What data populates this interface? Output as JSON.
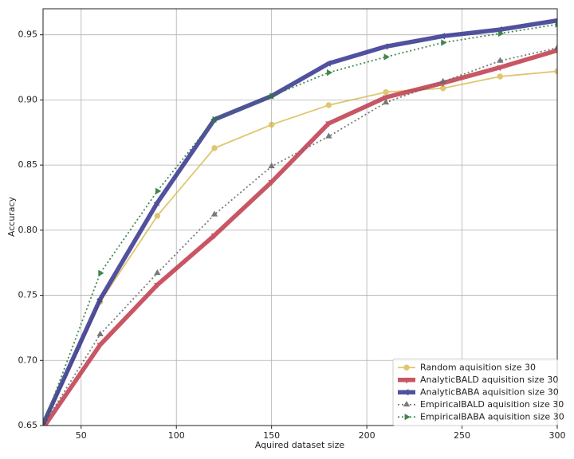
{
  "chart_data": {
    "type": "line",
    "xlabel": "Aquired dataset size",
    "ylabel": "Accuracy",
    "x": [
      30,
      60,
      90,
      120,
      150,
      180,
      210,
      240,
      270,
      300
    ],
    "xlim": [
      30,
      300
    ],
    "ylim": [
      0.65,
      0.97
    ],
    "xticks": [
      50,
      100,
      150,
      200,
      250,
      300
    ],
    "yticks": [
      0.65,
      {
        "value": 0.7,
        "label": "0.70"
      },
      0.75,
      {
        "value": 0.8,
        "label": "0.80"
      },
      0.85,
      {
        "value": 0.9,
        "label": "0.90"
      },
      0.95
    ],
    "grid": true,
    "legend": "lower right",
    "series": [
      {
        "name": "Random aquisition size 30",
        "color": "#d4b540",
        "marker": "o",
        "line_style": "solid",
        "values": [
          0.65,
          0.745,
          0.811,
          0.863,
          0.881,
          0.896,
          0.906,
          0.909,
          0.918,
          0.922
        ]
      },
      {
        "name": "AnalyticBALD aquisition size 30",
        "color": "#c0394a",
        "marker": "v",
        "line_style": "thick",
        "values": [
          0.648,
          0.712,
          0.758,
          0.796,
          0.837,
          0.882,
          0.902,
          0.913,
          0.925,
          0.938
        ]
      },
      {
        "name": "AnalyticBABA aquisition size 30",
        "color": "#33338f",
        "marker": "<",
        "line_style": "thick",
        "values": [
          0.651,
          0.747,
          0.821,
          0.885,
          0.903,
          0.928,
          0.941,
          0.949,
          0.954,
          0.961
        ]
      },
      {
        "name": "EmpiricalBALD aquisition size 30",
        "color": "#6b6b6b",
        "marker": "^",
        "line_style": "dotted",
        "values": [
          0.65,
          0.72,
          0.767,
          0.812,
          0.849,
          0.872,
          0.898,
          0.914,
          0.93,
          0.94
        ]
      },
      {
        "name": "EmpiricalBABA aquisition size 30",
        "color": "#2f7a3a",
        "marker": ">",
        "line_style": "dotted",
        "values": [
          0.65,
          0.767,
          0.83,
          0.885,
          0.903,
          0.921,
          0.933,
          0.944,
          0.951,
          0.958
        ]
      }
    ]
  }
}
